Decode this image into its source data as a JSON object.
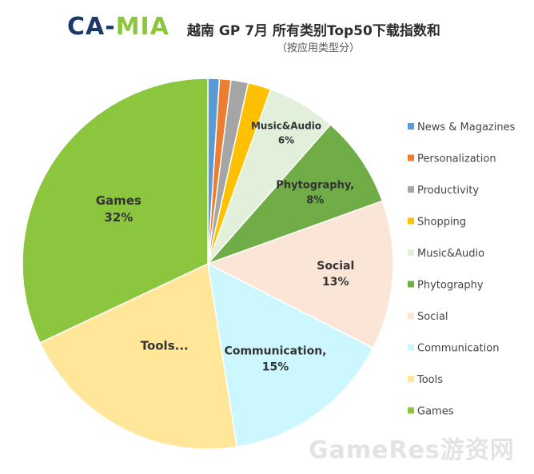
{
  "header": {
    "logo_left": "CA",
    "logo_dash": "-",
    "logo_right": "MIA",
    "title": "越南 GP 7月 所有类别Top50下载指数和",
    "subtitle": "（按应用类型分）"
  },
  "watermark": "GameRes游资网",
  "chart_data": {
    "type": "pie",
    "title": "越南 GP 7月 所有类别Top50下载指数和",
    "subtitle": "（按应用类型分）",
    "legend_position": "right",
    "start": "top",
    "direction": "clockwise",
    "slices": [
      {
        "label": "News & Magazines",
        "value": 1,
        "color": "#5b9bd5",
        "label_text": "",
        "pct_text": ""
      },
      {
        "label": "Personalization",
        "value": 1,
        "color": "#ed7d31",
        "label_text": "",
        "pct_text": ""
      },
      {
        "label": "Productivity",
        "value": 1.5,
        "color": "#a5a5a5",
        "label_text": "",
        "pct_text": ""
      },
      {
        "label": "Shopping",
        "value": 2,
        "color": "#ffc000",
        "label_text": "",
        "pct_text": ""
      },
      {
        "label": "Music&Audio",
        "value": 6,
        "color": "#e2efda",
        "label_text": "Music&Audio",
        "pct_text": "6%"
      },
      {
        "label": "Phytography",
        "value": 8,
        "color": "#70ad47",
        "label_text": "Phytography,",
        "pct_text": "8%"
      },
      {
        "label": "Social",
        "value": 13,
        "color": "#fbe5d6",
        "label_text": "Social",
        "pct_text": "13%"
      },
      {
        "label": "Communication",
        "value": 15,
        "color": "#ccf7ff",
        "label_text": "Communication,",
        "pct_text": "15%"
      },
      {
        "label": "Tools",
        "value": 20.5,
        "color": "#ffe699",
        "label_text": "Tools...",
        "pct_text": ""
      },
      {
        "label": "Games",
        "value": 32,
        "color": "#8cc63f",
        "label_text": "Games",
        "pct_text": "32%"
      }
    ]
  }
}
